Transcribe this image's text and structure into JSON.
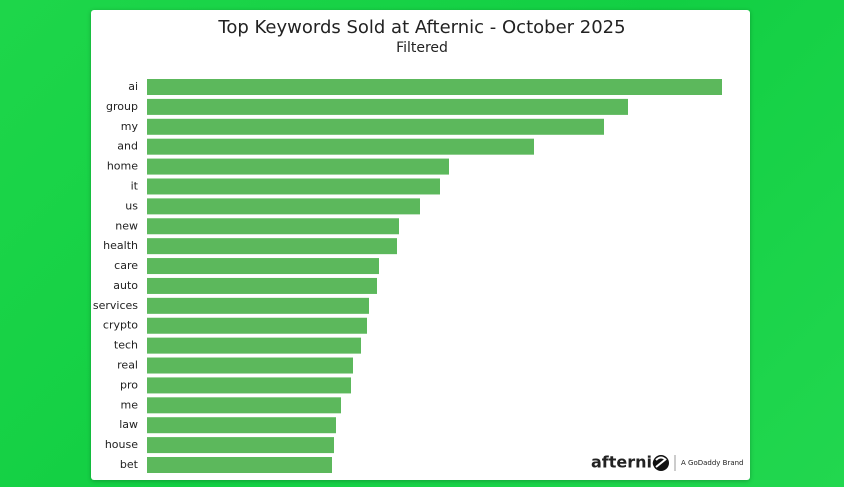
{
  "chart_data": {
    "type": "bar",
    "orientation": "horizontal",
    "title": "Top Keywords Sold at Afternic - October 2025",
    "subtitle": "Filtered",
    "categories": [
      "ai",
      "group",
      "my",
      "and",
      "home",
      "it",
      "us",
      "new",
      "health",
      "care",
      "auto",
      "services",
      "crypto",
      "tech",
      "real",
      "pro",
      "me",
      "law",
      "house",
      "bet"
    ],
    "values": [
      575,
      481,
      457,
      387,
      302,
      293,
      273,
      252,
      250,
      232,
      230,
      222,
      220,
      214,
      206,
      204,
      194,
      189,
      187,
      185
    ],
    "color": "#5cb85c"
  },
  "branding": {
    "logo": "afternic",
    "tagline": "A GoDaddy Brand"
  }
}
